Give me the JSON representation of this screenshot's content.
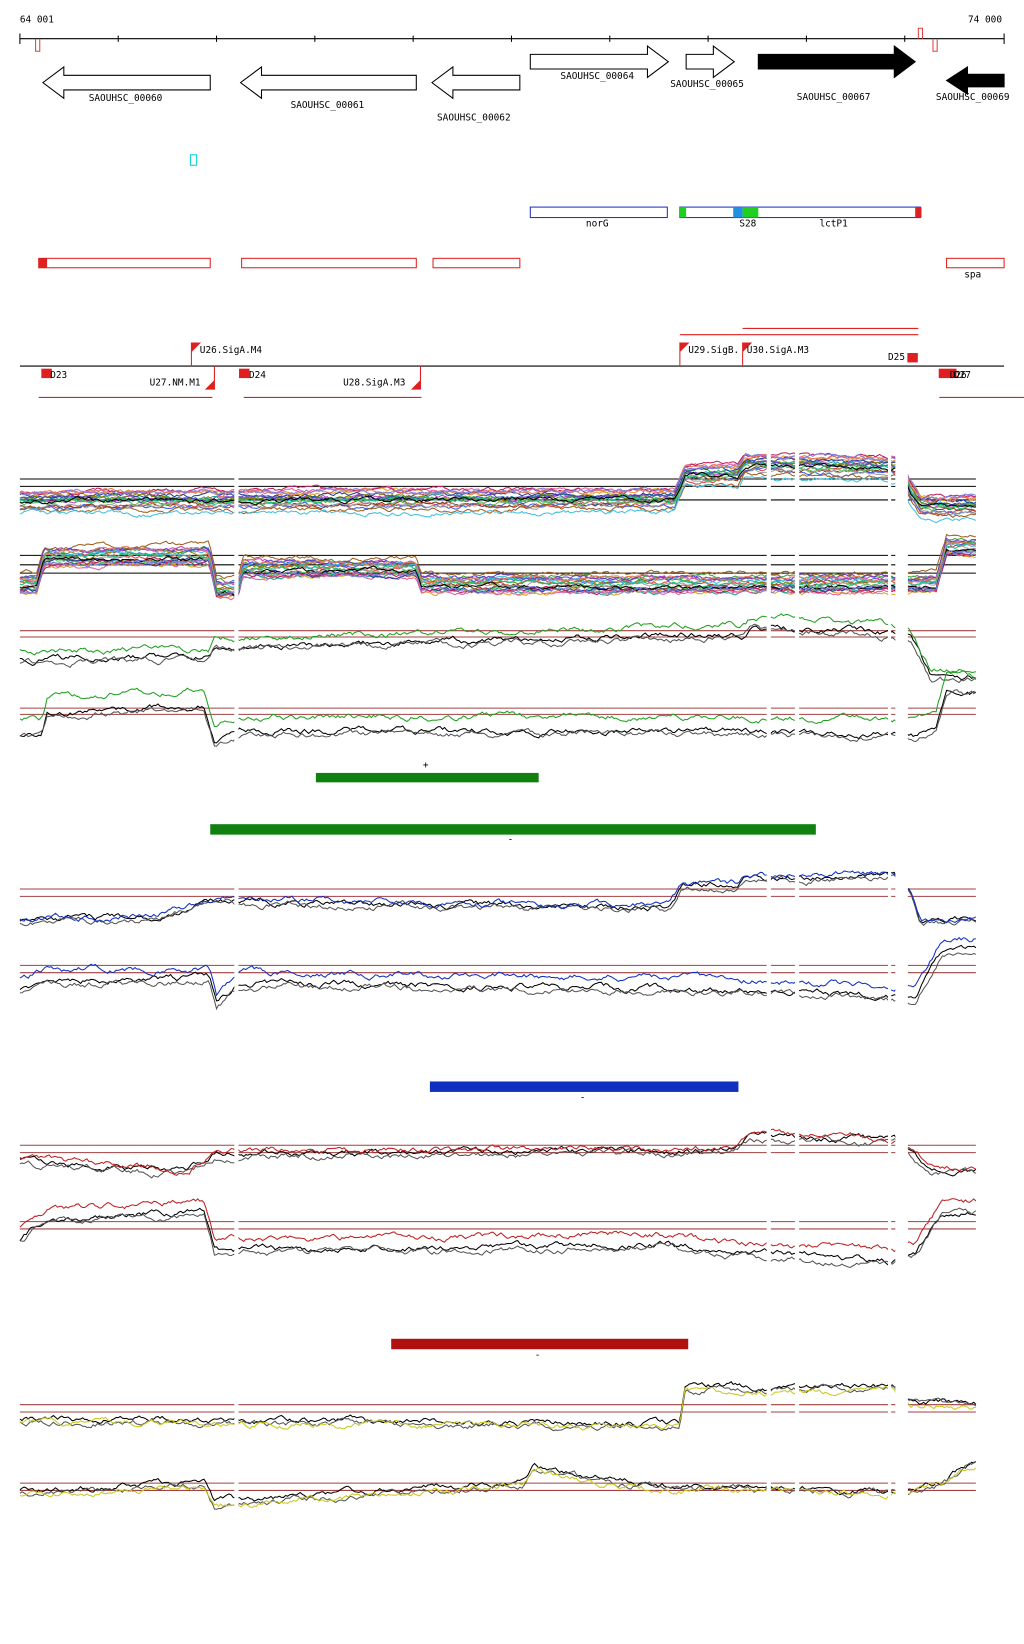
{
  "ruler": {
    "start": "64 001",
    "end": "74 000"
  },
  "genes": [
    "SAOUHSC_00060",
    "SAOUHSC_00061",
    "SAOUHSC_00062",
    "SAOUHSC_00064",
    "SAOUHSC_00065",
    "SAOUHSC_00067",
    "SAOUHSC_00069"
  ],
  "features": [
    "norG",
    "S28",
    "lctP1",
    "spa"
  ],
  "promoters": [
    "U26.SigA.M4",
    "U27.NM.M1",
    "U28.SigA.M3",
    "U29.SigB.",
    "U30.SigA.M3"
  ],
  "terminators": [
    "D23",
    "D24",
    "D25",
    "D26",
    "D27"
  ],
  "strand_bars": [
    "+",
    "-",
    "-",
    "-"
  ]
}
